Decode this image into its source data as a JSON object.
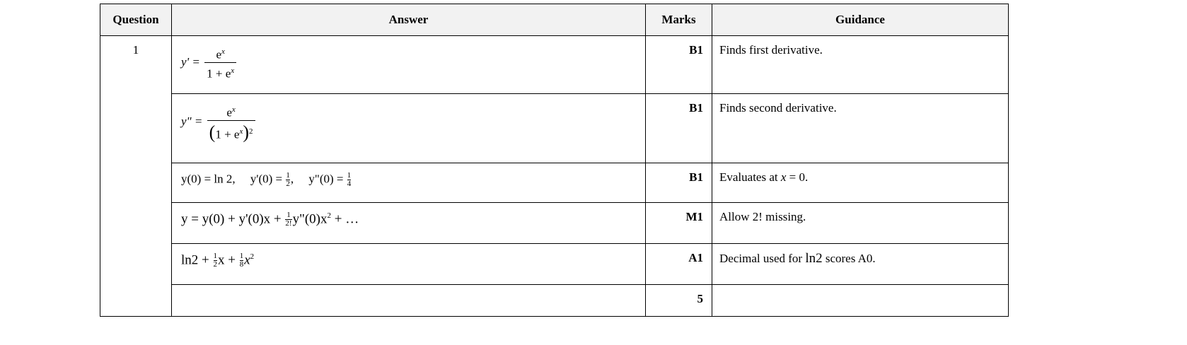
{
  "headers": [
    "Question",
    "Answer",
    "Marks",
    "Guidance"
  ],
  "question_number": "1",
  "rows": [
    {
      "answer": {
        "lhs": "y' =",
        "num": "e",
        "num_sup": "x",
        "den": "1 + e",
        "den_sup": "x"
      },
      "marks": "B1",
      "guidance": "Finds first derivative."
    },
    {
      "answer": {
        "lhs": "y\" =",
        "num": "e",
        "num_sup": "x",
        "den_open": "(",
        "den": "1 + e",
        "den_sup": "x",
        "den_close": ")",
        "den_pow": "2"
      },
      "marks": "B1",
      "guidance": "Finds second derivative."
    },
    {
      "answer": {
        "p1": "y(0) = ln 2,",
        "p2": "y'(0) =",
        "f1n": "1",
        "f1d": "2",
        "p3": ",",
        "p4": "y\"(0) =",
        "f2n": "1",
        "f2d": "4"
      },
      "marks": "B1",
      "guidance": {
        "pre": "Evaluates at ",
        "var": "x",
        "post": " = 0."
      }
    },
    {
      "answer": {
        "p1": "y = y(0) + y'(0)x +",
        "fn": "1",
        "fd": "2!",
        "p2": "y\"(0)x",
        "sup": "2",
        "p3": " + …"
      },
      "marks": "M1",
      "guidance": "Allow 2! missing."
    },
    {
      "answer": {
        "p1": "ln2 +",
        "f1n": "1",
        "f1d": "2",
        "p2": "x +",
        "f2n": "1",
        "f2d": "8",
        "p3": "x",
        "sup": "2"
      },
      "marks": "A1",
      "guidance": {
        "pre": "Decimal used for ",
        "mid": "ln2",
        "post": " scores A0."
      }
    },
    {
      "answer": "",
      "marks": "5",
      "guidance": ""
    }
  ]
}
